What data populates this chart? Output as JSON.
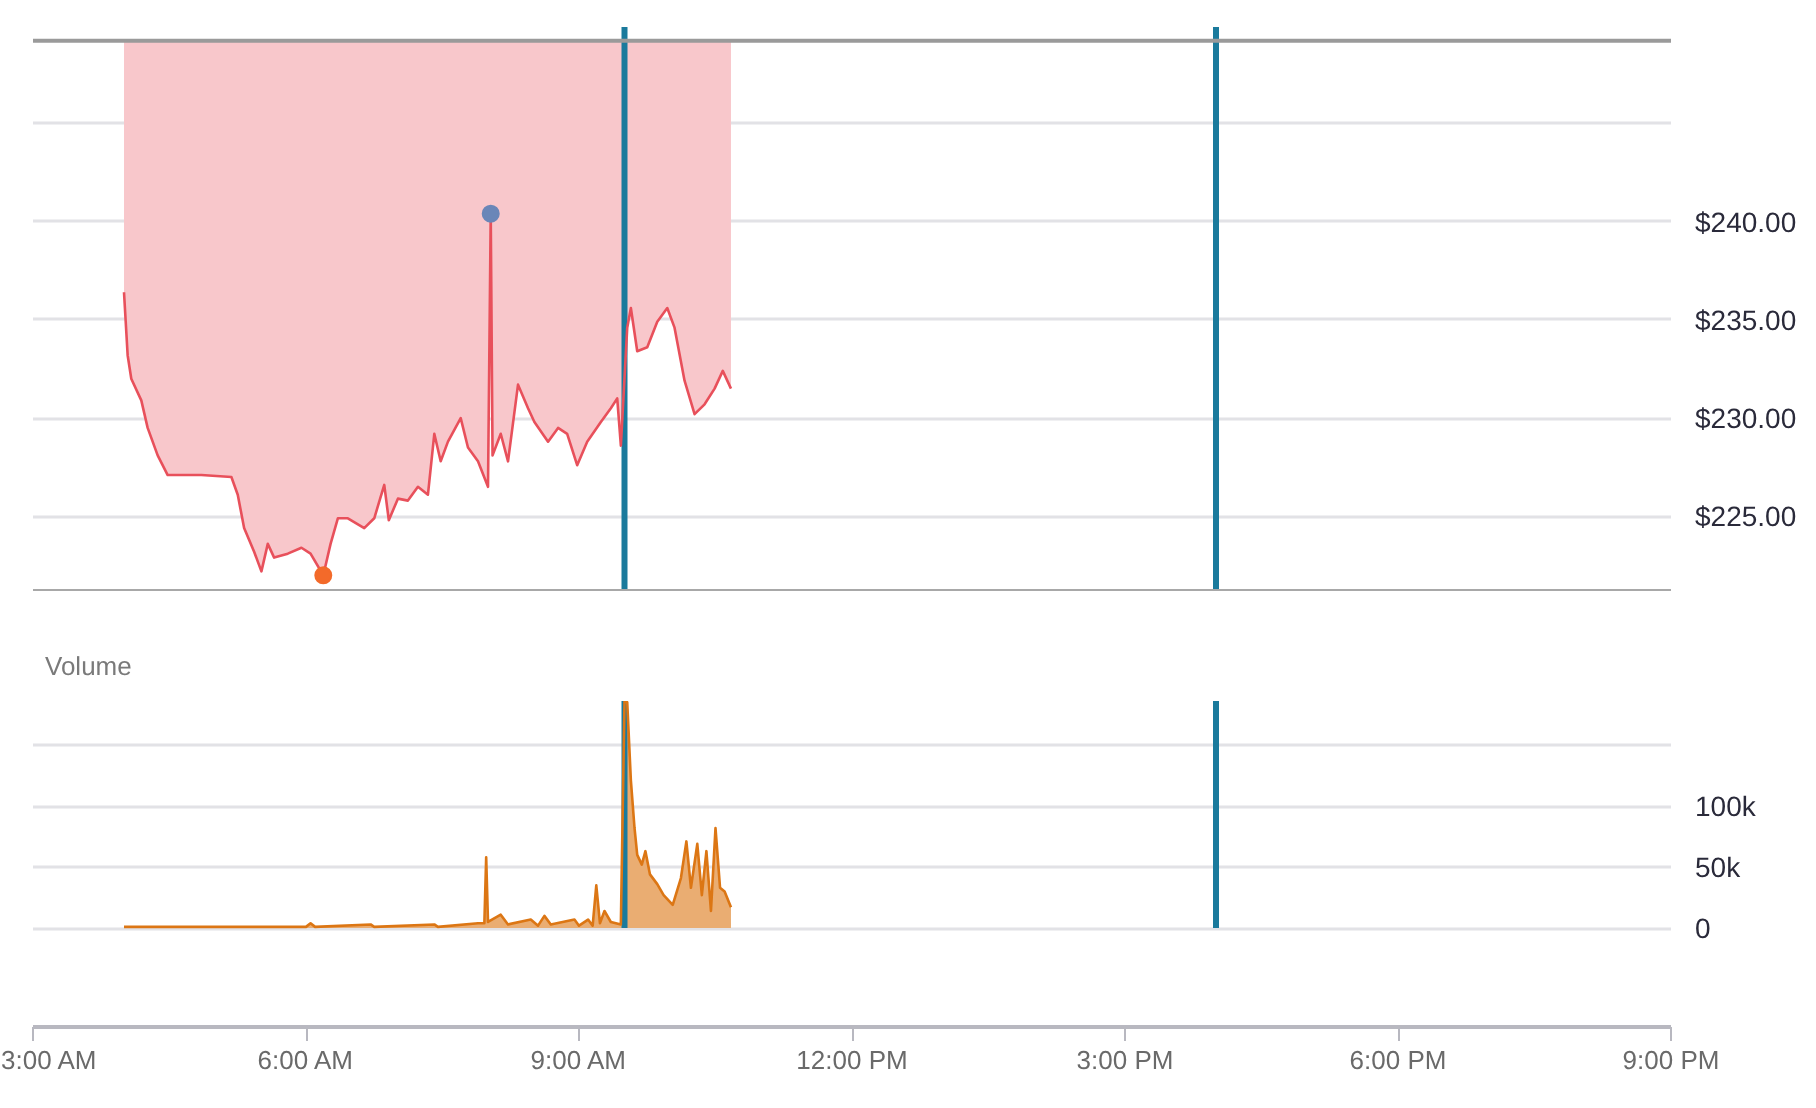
{
  "chart_data": [
    {
      "type": "line",
      "xlim": [
        3,
        21
      ],
      "ylim": [
        221.2,
        249.9
      ],
      "yticks": [
        {
          "value": 225,
          "label": "$225.00"
        },
        {
          "value": 230,
          "label": "$230.00"
        },
        {
          "value": 235,
          "label": "$235.00"
        },
        {
          "value": 240,
          "label": "$240.00"
        },
        {
          "value": 245,
          "label": null
        }
      ],
      "tick_labels": "y",
      "grid": "y",
      "ref_lines": [
        {
          "axis": "y",
          "value": 249.2,
          "color": "#9a9a9a"
        },
        {
          "axis": "x",
          "value": 9.5,
          "color": "#1a7a9c"
        },
        {
          "axis": "x",
          "value": 16,
          "color": "#1a7a9c"
        }
      ],
      "series": [
        {
          "color": "#e8505b",
          "x": [
            4.0,
            4.04,
            4.08,
            4.19,
            4.26,
            4.37,
            4.48,
            4.63,
            4.85,
            5.18,
            5.25,
            5.32,
            5.43,
            5.51,
            5.58,
            5.65,
            5.8,
            5.95,
            6.05,
            6.19,
            6.27,
            6.35,
            6.46,
            6.64,
            6.75,
            6.86,
            6.91,
            7.01,
            7.12,
            7.23,
            7.34,
            7.41,
            7.48,
            7.56,
            7.7,
            7.78,
            7.89,
            8.0,
            8.03,
            8.05,
            8.14,
            8.22,
            8.33,
            8.44,
            8.51,
            8.66,
            8.77,
            8.87,
            8.98,
            9.09,
            9.24,
            9.35,
            9.42,
            9.46,
            9.53,
            9.57,
            9.64,
            9.75,
            9.86,
            9.97,
            10.05,
            10.16,
            10.27,
            10.38,
            10.49,
            10.58,
            10.67
          ],
          "values": [
            236.4,
            233.2,
            232.0,
            230.9,
            229.5,
            228.1,
            227.1,
            227.1,
            227.1,
            227.0,
            226.1,
            224.4,
            223.2,
            222.2,
            223.6,
            222.9,
            223.1,
            223.4,
            223.1,
            222.0,
            223.6,
            224.9,
            224.9,
            224.4,
            224.9,
            226.6,
            224.8,
            225.9,
            225.8,
            226.5,
            226.1,
            229.2,
            227.8,
            228.8,
            230.0,
            228.5,
            227.8,
            226.5,
            240.4,
            228.1,
            229.2,
            227.8,
            231.7,
            230.5,
            229.8,
            228.8,
            229.5,
            229.2,
            227.6,
            228.8,
            229.8,
            230.5,
            231.0,
            228.6,
            234.6,
            235.6,
            233.4,
            233.6,
            234.9,
            235.6,
            234.6,
            231.9,
            230.2,
            230.7,
            231.5,
            232.4,
            231.5
          ],
          "lower": [
            236.4,
            233.2,
            232.0,
            230.9,
            229.5,
            228.1,
            227.1,
            227.1,
            227.1,
            227.0,
            226.1,
            224.4,
            223.2,
            222.2,
            223.6,
            222.9,
            223.1,
            223.4,
            223.1,
            222.0,
            223.6,
            224.9,
            224.9,
            224.4,
            224.9,
            226.6,
            224.8,
            225.9,
            225.8,
            226.5,
            226.1,
            229.2,
            227.8,
            228.8,
            230.0,
            228.5,
            227.8,
            226.5,
            240.4,
            228.1,
            229.2,
            227.8,
            231.7,
            230.5,
            229.8,
            228.8,
            229.5,
            229.2,
            227.6,
            228.8,
            229.8,
            230.5,
            231.0,
            228.6,
            234.6,
            235.6,
            233.4,
            233.6,
            234.9,
            235.6,
            234.6,
            231.9,
            230.2,
            230.7,
            231.5,
            232.4,
            231.5
          ],
          "upper": [
            249.2,
            249.2,
            249.2,
            249.2,
            249.2,
            249.2,
            249.2,
            249.2,
            249.2,
            249.2,
            249.2,
            249.2,
            249.2,
            249.2,
            249.2,
            249.2,
            249.2,
            249.2,
            249.2,
            249.2,
            249.2,
            249.2,
            249.2,
            249.2,
            249.2,
            249.2,
            249.2,
            249.2,
            249.2,
            249.2,
            249.2,
            249.2,
            249.2,
            249.2,
            249.2,
            249.2,
            249.2,
            249.2,
            249.2,
            249.2,
            249.2,
            249.2,
            249.2,
            249.2,
            249.2,
            249.2,
            249.2,
            249.2,
            249.2,
            249.2,
            249.2,
            249.2,
            249.2,
            249.2,
            249.2,
            249.2,
            249.2,
            249.2,
            249.2,
            249.2,
            249.2,
            249.2,
            249.2,
            249.2,
            249.2,
            249.2,
            249.2
          ]
        },
        {
          "type": "scatter",
          "marker": "circle",
          "x": [
            8.03,
            6.19
          ],
          "values": [
            240.4,
            222.0
          ],
          "colors": [
            "#6a86b8",
            "#f36a2a"
          ]
        }
      ]
    },
    {
      "type": "area",
      "title": "Volume",
      "xlim": [
        3,
        21
      ],
      "xticks": [
        {
          "value": 3,
          "label": "3:00 AM"
        },
        {
          "value": 6,
          "label": "6:00 AM"
        },
        {
          "value": 9,
          "label": "9:00 AM"
        },
        {
          "value": 12,
          "label": "12:00 PM"
        },
        {
          "value": 15,
          "label": "3:00 PM"
        },
        {
          "value": 18,
          "label": "6:00 PM"
        },
        {
          "value": 21,
          "label": "9:00 PM"
        }
      ],
      "ylim": [
        -81000,
        186000
      ],
      "yticks": [
        0,
        {
          "value": 50000,
          "label": "50k"
        },
        {
          "value": 100000,
          "label": "100k"
        },
        {
          "value": 150000,
          "label": null
        }
      ],
      "grid": "y",
      "ref_lines": [
        {
          "axis": "x",
          "value": 9.5,
          "color": "#1a7a9c"
        },
        {
          "axis": "x",
          "value": 16,
          "color": "#1a7a9c"
        }
      ],
      "series": [
        {
          "color": "#dc7614",
          "x": [
            4.0,
            5.0,
            6.0,
            6.05,
            6.1,
            6.71,
            6.75,
            7.41,
            7.45,
            7.89,
            7.96,
            7.98,
            8.0,
            8.14,
            8.22,
            8.47,
            8.55,
            8.62,
            8.69,
            8.95,
            9.0,
            9.1,
            9.15,
            9.19,
            9.23,
            9.28,
            9.35,
            9.46,
            9.5,
            9.53,
            9.57,
            9.61,
            9.64,
            9.69,
            9.73,
            9.78,
            9.86,
            9.93,
            10.03,
            10.12,
            10.18,
            10.23,
            10.3,
            10.35,
            10.4,
            10.45,
            10.5,
            10.55,
            10.6,
            10.67
          ],
          "values": [
            1000,
            1000,
            1000,
            4000,
            1000,
            3000,
            1000,
            3000,
            1000,
            4000,
            4000,
            58000,
            5000,
            11000,
            3000,
            7000,
            2000,
            10000,
            3000,
            7000,
            2000,
            7000,
            2000,
            35000,
            4000,
            14000,
            5000,
            3000,
            186000,
            185000,
            121000,
            82000,
            60000,
            52000,
            63000,
            44000,
            36000,
            27000,
            19000,
            41000,
            71000,
            33000,
            69000,
            27000,
            63000,
            14000,
            82000,
            33000,
            30000,
            17000
          ]
        }
      ]
    }
  ]
}
